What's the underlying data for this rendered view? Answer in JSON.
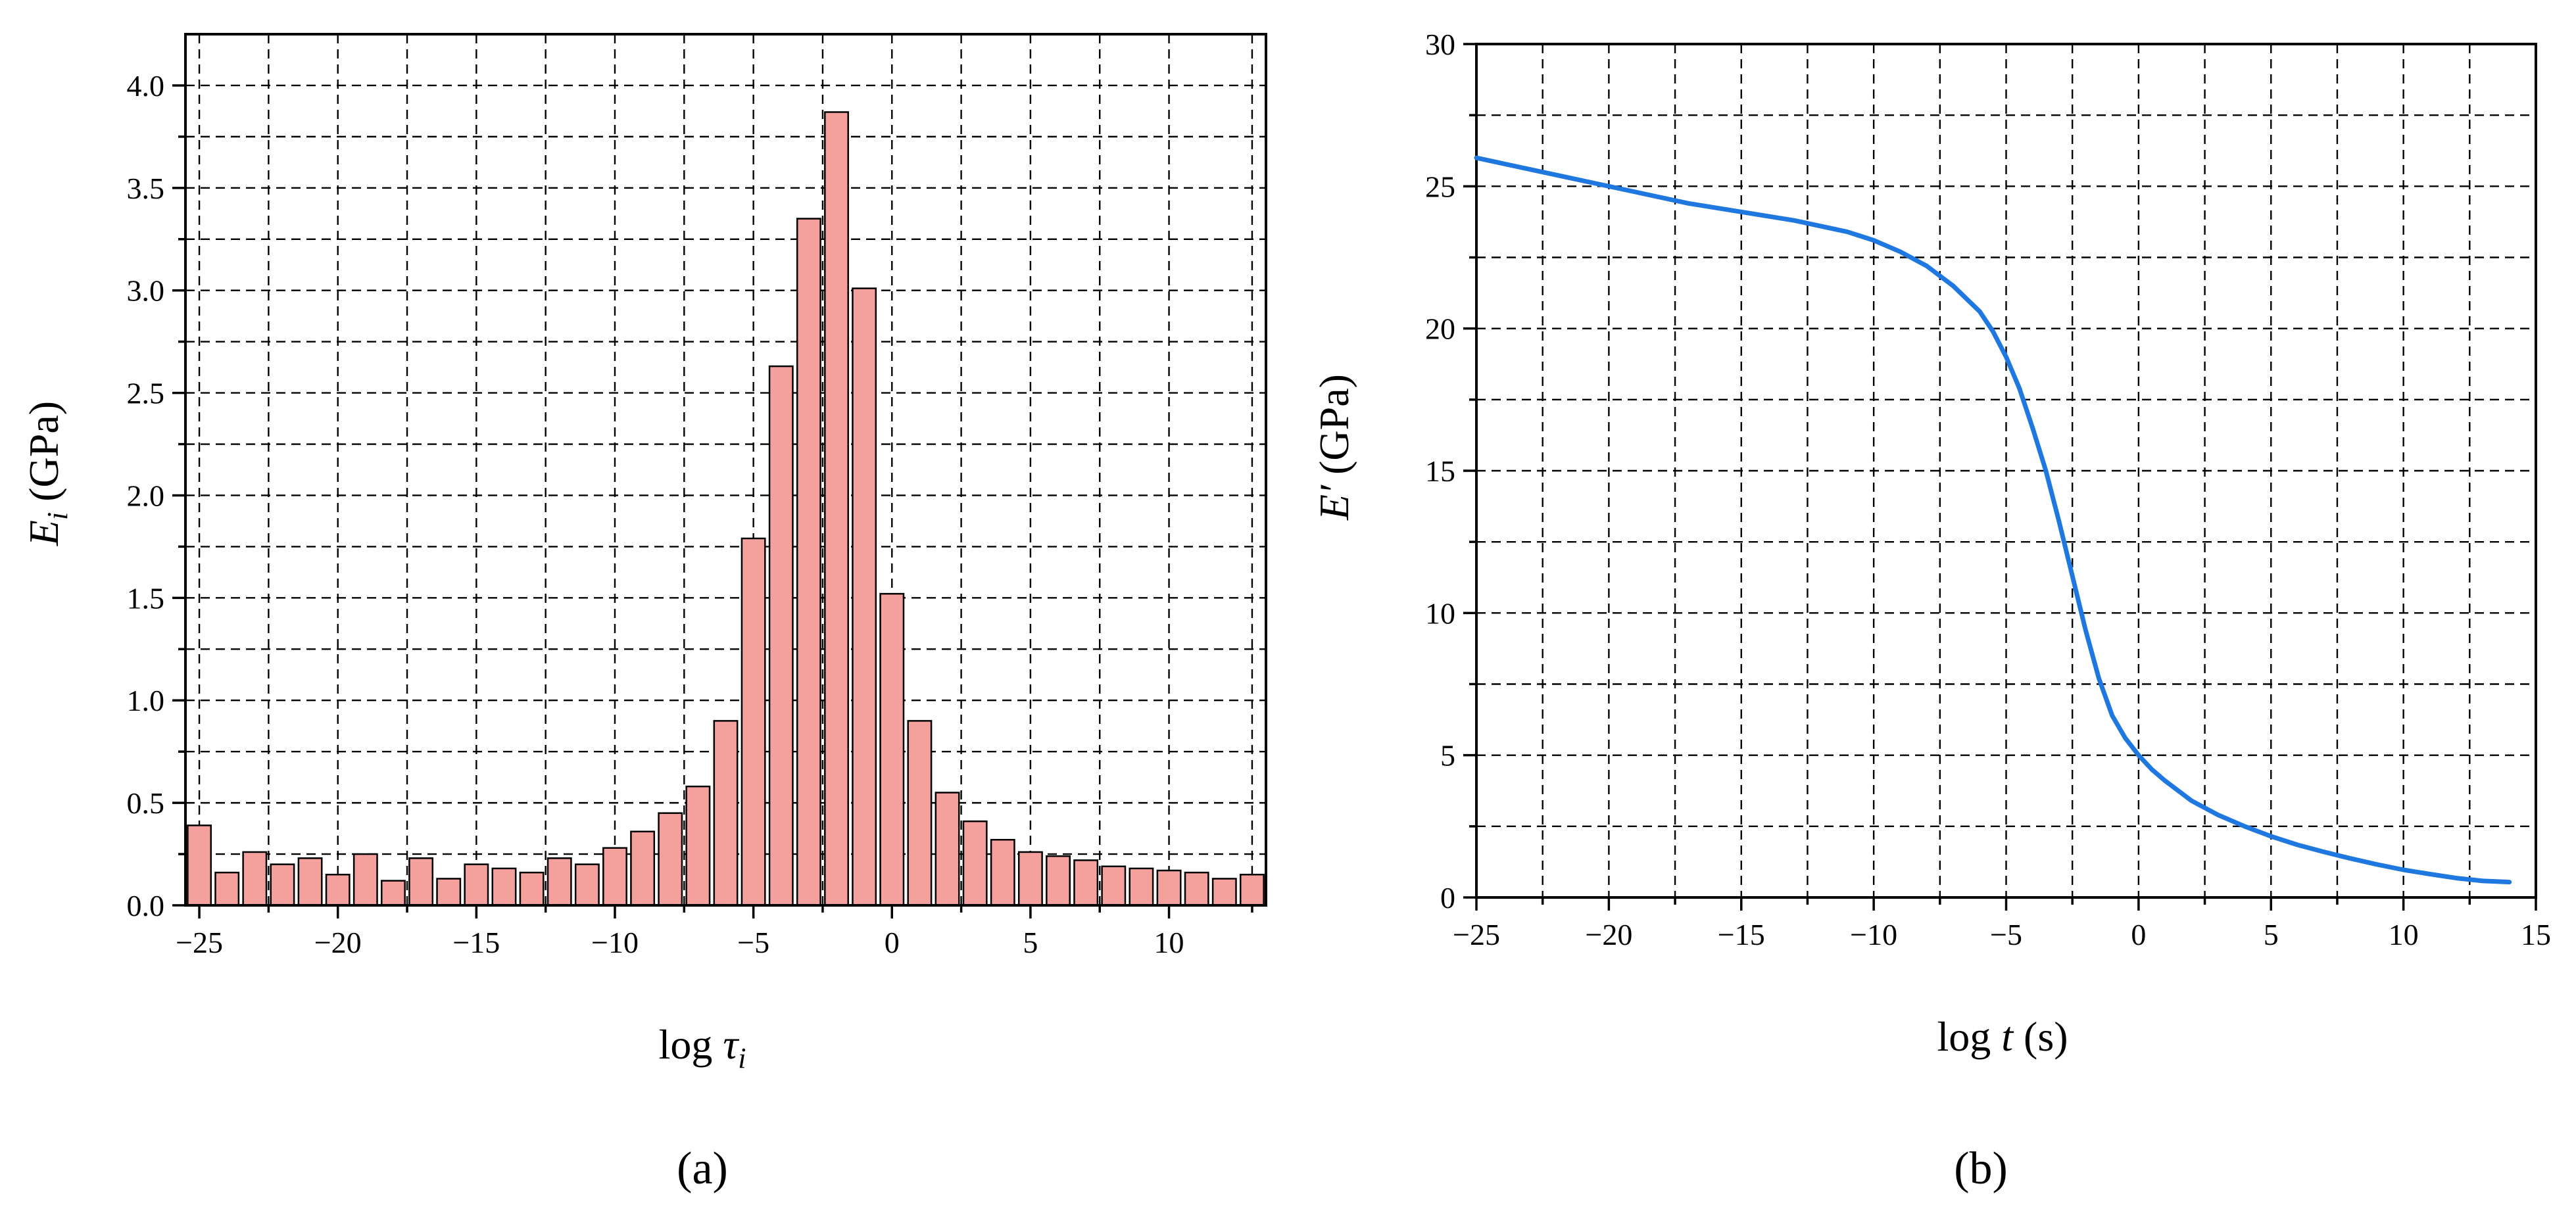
{
  "chart_data": [
    {
      "type": "bar",
      "panel_label": "(a)",
      "xlabel": "log τi",
      "xlabel_base": "log ",
      "xlabel_symbol": "τ",
      "xlabel_sub": "i",
      "ylabel": "Ei (GPa)",
      "ylabel_symbol": "E",
      "ylabel_sub": "i",
      "ylabel_unit": " (GPa)",
      "xlim": [
        -25.5,
        13.5
      ],
      "ylim": [
        0,
        4.25
      ],
      "xticks": [
        -25,
        -20,
        -15,
        -10,
        -5,
        0,
        5,
        10
      ],
      "yticks": [
        0.0,
        0.5,
        1.0,
        1.5,
        2.0,
        2.5,
        3.0,
        3.5,
        4.0
      ],
      "ytick_labels": [
        "0.0",
        "0.5",
        "1.0",
        "1.5",
        "2.0",
        "2.5",
        "3.0",
        "3.5",
        "4.0"
      ],
      "grid": true,
      "bar_color": "#f4a09c",
      "bar_edge_color": "#000000",
      "x": [
        -25,
        -24,
        -23,
        -22,
        -21,
        -20,
        -19,
        -18,
        -17,
        -16,
        -15,
        -14,
        -13,
        -12,
        -11,
        -10,
        -9,
        -8,
        -7,
        -6,
        -5,
        -4,
        -3,
        -2,
        -1,
        0,
        1,
        2,
        3,
        4,
        5,
        6,
        7,
        8,
        9,
        10,
        11,
        12,
        13
      ],
      "values": [
        0.39,
        0.16,
        0.26,
        0.2,
        0.23,
        0.15,
        0.25,
        0.12,
        0.23,
        0.13,
        0.2,
        0.18,
        0.16,
        0.23,
        0.2,
        0.28,
        0.36,
        0.45,
        0.58,
        0.9,
        1.79,
        2.63,
        3.35,
        3.87,
        3.01,
        1.52,
        0.9,
        0.55,
        0.41,
        0.32,
        0.26,
        0.24,
        0.22,
        0.19,
        0.18,
        0.17,
        0.16,
        0.13,
        0.15
      ]
    },
    {
      "type": "line",
      "panel_label": "(b)",
      "xlabel": "log t (s)",
      "xlabel_base": "log ",
      "xlabel_symbol": "t",
      "xlabel_unit": " (s)",
      "ylabel": "E′ (GPa)",
      "ylabel_symbol": "E′",
      "ylabel_unit": " (GPa)",
      "xlim": [
        -25,
        15
      ],
      "ylim": [
        0,
        30
      ],
      "xticks": [
        -25,
        -20,
        -15,
        -10,
        -5,
        0,
        5,
        10,
        15
      ],
      "yticks": [
        0,
        5,
        10,
        15,
        20,
        25,
        30
      ],
      "grid": true,
      "line_color": "#1f78e0",
      "x": [
        -25,
        -23,
        -21,
        -19,
        -17,
        -15,
        -13,
        -11,
        -10,
        -9,
        -8,
        -7,
        -6,
        -5.5,
        -5,
        -4.5,
        -4,
        -3.5,
        -3,
        -2.5,
        -2,
        -1.5,
        -1,
        -0.5,
        0,
        0.5,
        1,
        2,
        3,
        4,
        5,
        6,
        7,
        8,
        9,
        10,
        11,
        12,
        13,
        14
      ],
      "y": [
        26.0,
        25.6,
        25.2,
        24.8,
        24.4,
        24.1,
        23.8,
        23.4,
        23.1,
        22.7,
        22.2,
        21.5,
        20.6,
        19.9,
        19.0,
        17.9,
        16.5,
        15.0,
        13.2,
        11.3,
        9.4,
        7.7,
        6.4,
        5.6,
        5.0,
        4.5,
        4.1,
        3.4,
        2.9,
        2.5,
        2.15,
        1.85,
        1.6,
        1.37,
        1.16,
        0.97,
        0.82,
        0.68,
        0.58,
        0.54
      ]
    }
  ]
}
